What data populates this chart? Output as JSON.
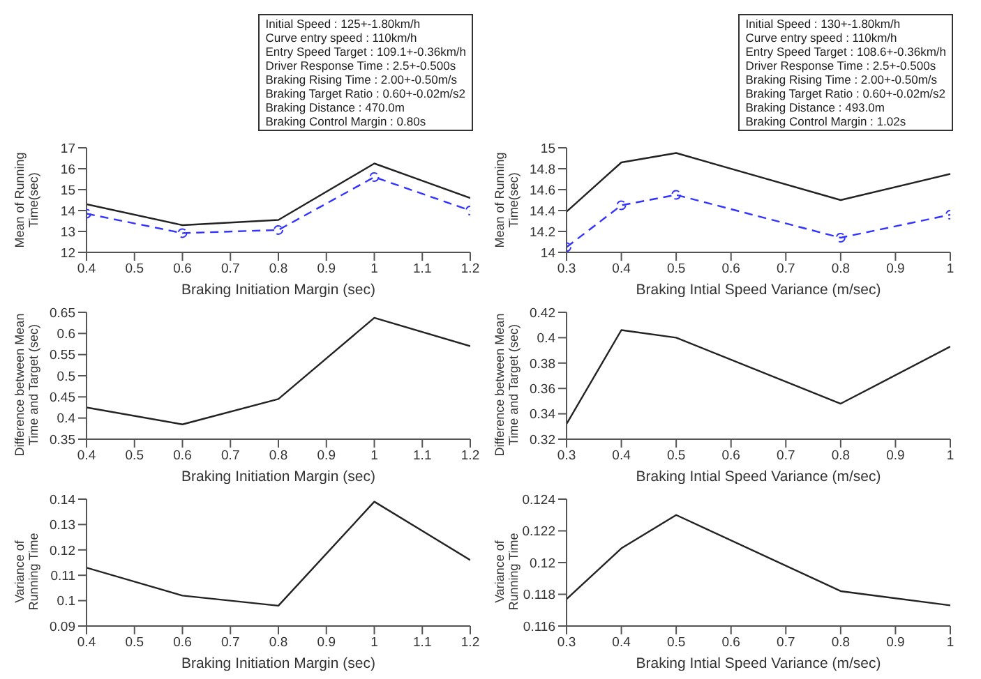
{
  "chart_data": [
    {
      "type": "line",
      "xlabel": "Braking Initiation Margin (sec)",
      "ylabel": "Mean of Running Time(sec)",
      "x": [
        0.4,
        0.6,
        0.8,
        1.0,
        1.2
      ],
      "series": [
        {
          "color": "#222222",
          "values": [
            14.3,
            13.3,
            13.55,
            16.25,
            14.6
          ],
          "marker": "none",
          "line_style": "solid"
        },
        {
          "color": "#3333ff",
          "values": [
            13.85,
            12.92,
            13.07,
            15.6,
            14.0
          ],
          "marker": "circle",
          "line_style": "dashed"
        }
      ],
      "xlim": [
        0.4,
        1.2
      ],
      "xticks": [
        0.4,
        0.5,
        0.6,
        0.7,
        0.8,
        0.9,
        1,
        1.1,
        1.2
      ],
      "ylim": [
        12,
        17
      ],
      "yticks": [
        12,
        13,
        14,
        15,
        16,
        17
      ],
      "annotations": [
        "Initial Speed : 125+-1.80km/h",
        "Curve entry speed : 110km/h",
        "Entry Speed Target : 109.1+-0.36km/h",
        "Driver Response Time : 2.5+-0.500s",
        "Braking Rising Time : 2.00+-0.50m/s",
        "Braking Target Ratio : 0.60+-0.02m/s2",
        "Braking Distance : 470.0m",
        "Braking Control Margin : 0.80s"
      ]
    },
    {
      "type": "line",
      "xlabel": "Braking Intial Speed Variance (m/sec)",
      "ylabel": "Mean of Running Time(sec)",
      "x": [
        0.3,
        0.4,
        0.5,
        0.8,
        1.0
      ],
      "series": [
        {
          "color": "#222222",
          "values": [
            14.39,
            14.86,
            14.95,
            14.5,
            14.75
          ],
          "marker": "none",
          "line_style": "solid"
        },
        {
          "color": "#3333ff",
          "values": [
            14.05,
            14.45,
            14.55,
            14.14,
            14.36
          ],
          "marker": "circle",
          "line_style": "dashed"
        }
      ],
      "xlim": [
        0.3,
        1
      ],
      "xticks": [
        0.3,
        0.4,
        0.5,
        0.6,
        0.7,
        0.8,
        0.9,
        1
      ],
      "ylim": [
        14,
        15
      ],
      "yticks": [
        14,
        14.2,
        14.4,
        14.6,
        14.8,
        15
      ],
      "annotations": [
        "Initial Speed : 130+-1.80km/h",
        "Curve entry speed : 110km/h",
        "Entry Speed Target : 108.6+-0.36km/h",
        "Driver Response Time : 2.5+-0.500s",
        "Braking Rising Time : 2.00+-0.50m/s",
        "Braking Target Ratio : 0.60+-0.02m/s2",
        "Braking Distance : 493.0m",
        "Braking Control Margin : 1.02s"
      ]
    },
    {
      "type": "line",
      "xlabel": "Braking Initiation Margin (sec)",
      "ylabel": "Difference between Mean Time and Target (sec)",
      "x": [
        0.4,
        0.6,
        0.8,
        1.0,
        1.2
      ],
      "series": [
        {
          "color": "#222222",
          "values": [
            0.425,
            0.385,
            0.445,
            0.637,
            0.57
          ],
          "marker": "none",
          "line_style": "solid"
        }
      ],
      "xlim": [
        0.4,
        1.2
      ],
      "xticks": [
        0.4,
        0.5,
        0.6,
        0.7,
        0.8,
        0.9,
        1,
        1.1,
        1.2
      ],
      "ylim": [
        0.35,
        0.65
      ],
      "yticks": [
        0.35,
        0.4,
        0.45,
        0.5,
        0.55,
        0.6,
        0.65
      ]
    },
    {
      "type": "line",
      "xlabel": "Braking Intial Speed Variance (m/sec)",
      "ylabel": "Difference between Mean Time and Target (sec)",
      "x": [
        0.3,
        0.4,
        0.5,
        0.8,
        1.0
      ],
      "series": [
        {
          "color": "#222222",
          "values": [
            0.332,
            0.406,
            0.4,
            0.348,
            0.393
          ],
          "marker": "none",
          "line_style": "solid"
        }
      ],
      "xlim": [
        0.3,
        1
      ],
      "xticks": [
        0.3,
        0.4,
        0.5,
        0.6,
        0.7,
        0.8,
        0.9,
        1
      ],
      "ylim": [
        0.32,
        0.42
      ],
      "yticks": [
        0.32,
        0.34,
        0.36,
        0.38,
        0.4,
        0.42
      ]
    },
    {
      "type": "line",
      "xlabel": "Braking Initiation Margin (sec)",
      "ylabel": "Variance of Running Time",
      "x": [
        0.4,
        0.6,
        0.8,
        1.0,
        1.2
      ],
      "series": [
        {
          "color": "#222222",
          "values": [
            0.113,
            0.102,
            0.098,
            0.139,
            0.116
          ],
          "marker": "none",
          "line_style": "solid"
        }
      ],
      "xlim": [
        0.4,
        1.2
      ],
      "xticks": [
        0.4,
        0.5,
        0.6,
        0.7,
        0.8,
        0.9,
        1,
        1.1,
        1.2
      ],
      "ylim": [
        0.09,
        0.14
      ],
      "yticks": [
        0.09,
        0.1,
        0.11,
        0.12,
        0.13,
        0.14
      ]
    },
    {
      "type": "line",
      "xlabel": "Braking Intial Speed Variance (m/sec)",
      "ylabel": "Variance of Running Time",
      "x": [
        0.3,
        0.4,
        0.5,
        0.8,
        1.0
      ],
      "series": [
        {
          "color": "#222222",
          "values": [
            0.1177,
            0.1209,
            0.123,
            0.1182,
            0.1173
          ],
          "marker": "none",
          "line_style": "solid"
        }
      ],
      "xlim": [
        0.3,
        1
      ],
      "xticks": [
        0.3,
        0.4,
        0.5,
        0.6,
        0.7,
        0.8,
        0.9,
        1
      ],
      "ylim": [
        0.116,
        0.124
      ],
      "yticks": [
        0.116,
        0.118,
        0.12,
        0.122,
        0.124
      ]
    }
  ]
}
